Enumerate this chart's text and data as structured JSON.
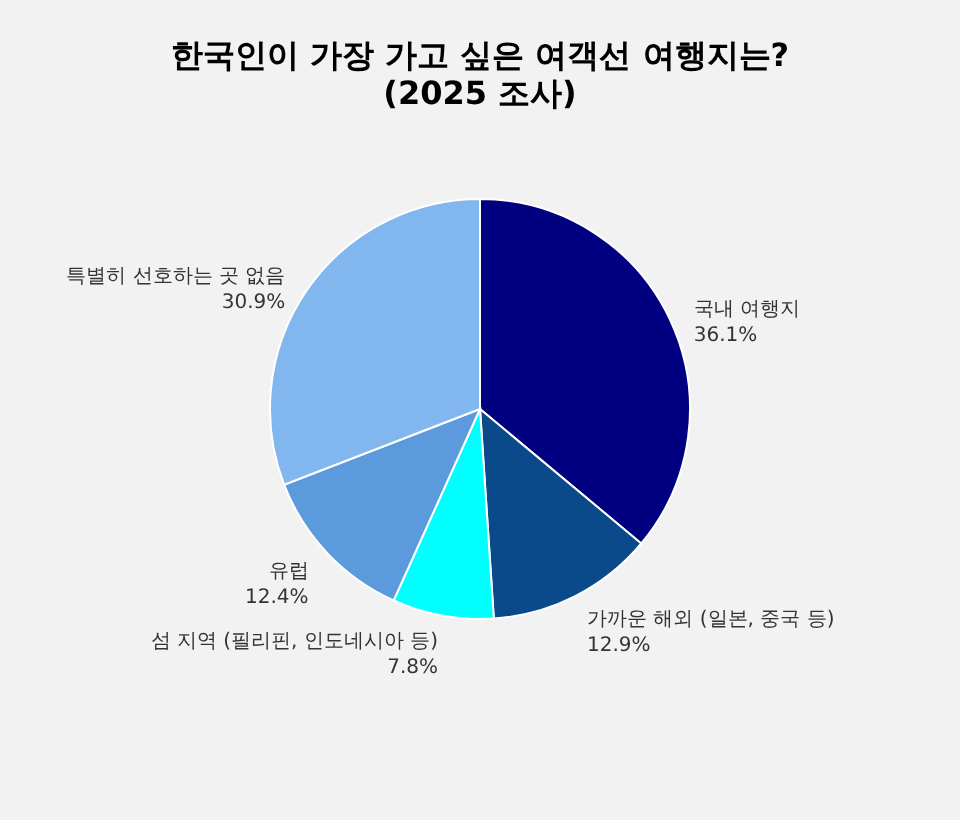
{
  "chart_data": {
    "type": "pie",
    "title": "한국인이 가장 가고 싶은 여객선 여행지는?",
    "subtitle": "(2025 조사)",
    "categories": [
      "국내 여행지",
      "가까운 해외 (일본, 중국 등)",
      "섬 지역 (필리핀, 인도네시아 등)",
      "유럽",
      "특별히 선호하는 곳 없음"
    ],
    "values": [
      36.1,
      12.9,
      7.8,
      12.4,
      30.9
    ],
    "colors": [
      "#000080",
      "#0a4a8a",
      "#00ffff",
      "#5b9bdd",
      "#82b6ee"
    ],
    "value_labels": [
      "36.1%",
      "12.9%",
      "7.8%",
      "12.4%",
      "30.9%"
    ]
  }
}
